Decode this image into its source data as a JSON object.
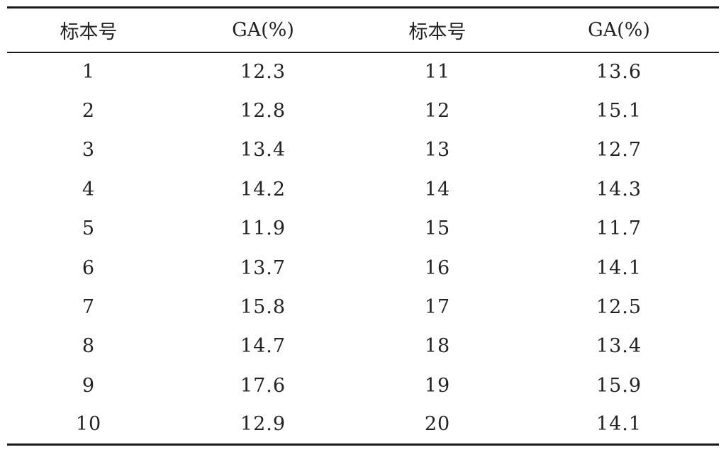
{
  "table": {
    "headers": [
      "标本号",
      "GA(%)",
      "标本号",
      "GA(%)"
    ],
    "rows": [
      [
        "1",
        "12.3",
        "11",
        "13.6"
      ],
      [
        "2",
        "12.8",
        "12",
        "15.1"
      ],
      [
        "3",
        "13.4",
        "13",
        "12.7"
      ],
      [
        "4",
        "14.2",
        "14",
        "14.3"
      ],
      [
        "5",
        "11.9",
        "15",
        "11.7"
      ],
      [
        "6",
        "13.7",
        "16",
        "14.1"
      ],
      [
        "7",
        "15.8",
        "17",
        "12.5"
      ],
      [
        "8",
        "14.7",
        "18",
        "13.4"
      ],
      [
        "9",
        "17.6",
        "19",
        "15.9"
      ],
      [
        "10",
        "12.9",
        "20",
        "14.1"
      ]
    ]
  }
}
